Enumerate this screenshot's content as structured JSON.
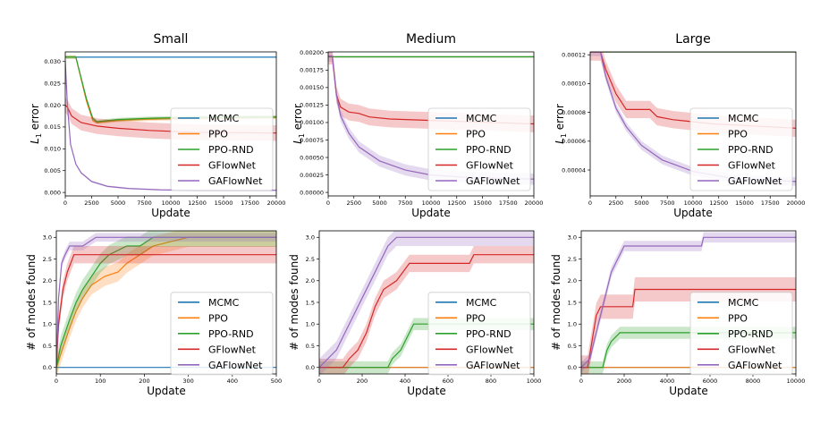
{
  "columns": [
    "Small",
    "Medium",
    "Large"
  ],
  "legend_labels": [
    "MCMC",
    "PPO",
    "PPO-RND",
    "GFlowNet",
    "GAFlowNet"
  ],
  "colors": {
    "MCMC": "#1f77b4",
    "PPO": "#ff7f0e",
    "PPO-RND": "#2ca02c",
    "GFlowNet": "#d62728",
    "GAFlowNet": "#9467bd"
  },
  "chart_data": [
    {
      "id": "small-error",
      "type": "line",
      "title": "Small",
      "xlabel": "Update",
      "ylabel": "L1 error",
      "xlim": [
        0,
        20000
      ],
      "ylim": [
        -0.0008,
        0.0322
      ],
      "xticks": [
        0,
        2500,
        5000,
        7500,
        10000,
        12500,
        15000,
        17500,
        20000
      ],
      "xtick_labels": [
        "0",
        "2500",
        "5000",
        "7500",
        "10000",
        "12500",
        "15000",
        "17500",
        "20000"
      ],
      "yticks": [
        0,
        0.005,
        0.01,
        0.015,
        0.02,
        0.025,
        0.03
      ],
      "ytick_labels": [
        "0.000",
        "0.005",
        "0.010",
        "0.015",
        "0.020",
        "0.025",
        "0.030"
      ],
      "legend": "right",
      "series": [
        {
          "name": "MCMC",
          "x": [
            0,
            20000
          ],
          "y": [
            0.031,
            0.031
          ],
          "band": 0
        },
        {
          "name": "PPO",
          "x": [
            0,
            1000,
            2000,
            2600,
            3000,
            5000,
            8000,
            12000,
            20000
          ],
          "y": [
            0.031,
            0.031,
            0.021,
            0.0165,
            0.016,
            0.0165,
            0.0168,
            0.017,
            0.0172
          ],
          "band": 0.0004
        },
        {
          "name": "PPO-RND",
          "x": [
            0,
            1000,
            2000,
            2600,
            3000,
            5000,
            8000,
            12000,
            20000
          ],
          "y": [
            0.031,
            0.031,
            0.0215,
            0.017,
            0.0162,
            0.0167,
            0.017,
            0.0172,
            0.0173
          ],
          "band": 0.0004
        },
        {
          "name": "GFlowNet",
          "x": [
            0,
            200,
            600,
            1500,
            3000,
            5000,
            8000,
            12000,
            20000
          ],
          "y": [
            0.02,
            0.0195,
            0.0175,
            0.016,
            0.0152,
            0.0147,
            0.0142,
            0.0138,
            0.0136
          ],
          "band": 0.0018
        },
        {
          "name": "GAFlowNet",
          "x": [
            0,
            200,
            500,
            1000,
            1500,
            2500,
            4000,
            6000,
            9000,
            12000,
            20000
          ],
          "y": [
            0.03,
            0.02,
            0.011,
            0.0065,
            0.0045,
            0.0025,
            0.0014,
            0.0009,
            0.0006,
            0.0005,
            0.0005
          ],
          "band": 0.0002
        }
      ]
    },
    {
      "id": "medium-error",
      "type": "line",
      "title": "Medium",
      "xlabel": "Update",
      "ylabel": "L1 error",
      "xlim": [
        0,
        20000
      ],
      "ylim": [
        -5e-05,
        0.00201
      ],
      "xticks": [
        0,
        2500,
        5000,
        7500,
        10000,
        12500,
        15000,
        17500,
        20000
      ],
      "xtick_labels": [
        "0",
        "2500",
        "5000",
        "7500",
        "10000",
        "12500",
        "15000",
        "17500",
        "20000"
      ],
      "yticks": [
        0,
        0.00025,
        0.0005,
        0.00075,
        0.001,
        0.00125,
        0.0015,
        0.00175,
        0.002
      ],
      "ytick_labels": [
        "0.00000",
        "0.00025",
        "0.00050",
        "0.00075",
        "0.00100",
        "0.00125",
        "0.00150",
        "0.00175",
        "0.00200"
      ],
      "legend": "right",
      "series": [
        {
          "name": "MCMC",
          "x": [
            0,
            20000
          ],
          "y": [
            0.00194,
            0.00194
          ],
          "band": 0
        },
        {
          "name": "PPO",
          "x": [
            0,
            20000
          ],
          "y": [
            0.00194,
            0.00194
          ],
          "band": 0
        },
        {
          "name": "PPO-RND",
          "x": [
            0,
            20000
          ],
          "y": [
            0.00194,
            0.00194
          ],
          "band": 0
        },
        {
          "name": "GFlowNet",
          "x": [
            0,
            400,
            800,
            1200,
            2000,
            3000,
            4000,
            6000,
            10000,
            14000,
            20000
          ],
          "y": [
            0.00195,
            0.00195,
            0.0014,
            0.00122,
            0.00115,
            0.00113,
            0.00108,
            0.00105,
            0.00103,
            0.00101,
            0.00098
          ],
          "band": 0.00012
        },
        {
          "name": "GAFlowNet",
          "x": [
            0,
            400,
            800,
            1200,
            2000,
            3000,
            5000,
            7500,
            10000,
            14000,
            20000
          ],
          "y": [
            0.00195,
            0.00195,
            0.0014,
            0.0011,
            0.00085,
            0.00065,
            0.00045,
            0.00032,
            0.00025,
            0.00021,
            0.00019
          ],
          "band": 8e-05
        }
      ]
    },
    {
      "id": "large-error",
      "type": "line",
      "title": "Large",
      "xlabel": "Update",
      "ylabel": "L1 error",
      "xlim": [
        0,
        20000
      ],
      "ylim": [
        2.2e-05,
        0.000122
      ],
      "xticks": [
        0,
        2500,
        5000,
        7500,
        10000,
        12500,
        15000,
        17500,
        20000
      ],
      "xtick_labels": [
        "0",
        "2500",
        "5000",
        "7500",
        "10000",
        "12500",
        "15000",
        "17500",
        "20000"
      ],
      "yticks": [
        4e-05,
        6e-05,
        8e-05,
        0.0001,
        0.00012
      ],
      "ytick_labels": [
        "0.00004",
        "0.00006",
        "0.00008",
        "0.00010",
        "0.00012"
      ],
      "legend": "right",
      "series": [
        {
          "name": "MCMC",
          "x": [
            0,
            20000
          ],
          "y": [
            0.000122,
            0.000122
          ],
          "band": 0
        },
        {
          "name": "PPO",
          "x": [
            0,
            20000
          ],
          "y": [
            0.000122,
            0.000122
          ],
          "band": 0
        },
        {
          "name": "PPO-RND",
          "x": [
            0,
            20000
          ],
          "y": [
            0.000122,
            0.000122
          ],
          "band": 0
        },
        {
          "name": "GFlowNet",
          "x": [
            0,
            1000,
            1500,
            2500,
            3500,
            5000,
            5800,
            6500,
            8000,
            12000,
            20000
          ],
          "y": [
            0.000122,
            0.000122,
            0.00011,
            9.3e-05,
            8.2e-05,
            8.2e-05,
            8.2e-05,
            7.7e-05,
            7.5e-05,
            7.2e-05,
            6.9e-05
          ],
          "band": 6e-06
        },
        {
          "name": "GAFlowNet",
          "x": [
            0,
            1000,
            1500,
            2500,
            3500,
            5000,
            7000,
            10000,
            14000,
            17000,
            20000
          ],
          "y": [
            0.000122,
            0.000122,
            0.000105,
            8.3e-05,
            7e-05,
            5.7e-05,
            4.7e-05,
            3.9e-05,
            3.4e-05,
            3.3e-05,
            3.2e-05
          ],
          "band": 3e-06
        }
      ]
    },
    {
      "id": "small-modes",
      "type": "line",
      "xlabel": "Update",
      "ylabel": "# of modes found",
      "xlim": [
        0,
        500
      ],
      "ylim": [
        -0.15,
        3.15
      ],
      "xticks": [
        0,
        100,
        200,
        300,
        400,
        500
      ],
      "xtick_labels": [
        "0",
        "100",
        "200",
        "300",
        "400",
        "500"
      ],
      "yticks": [
        0,
        0.5,
        1,
        1.5,
        2,
        2.5,
        3
      ],
      "ytick_labels": [
        "0.0",
        "0.5",
        "1.0",
        "1.5",
        "2.0",
        "2.5",
        "3.0"
      ],
      "legend": "right",
      "series": [
        {
          "name": "MCMC",
          "x": [
            0,
            500
          ],
          "y": [
            0,
            0
          ],
          "band": 0
        },
        {
          "name": "PPO",
          "x": [
            0,
            10,
            30,
            45,
            60,
            80,
            110,
            140,
            160,
            190,
            220,
            260,
            300,
            320,
            500
          ],
          "y": [
            0,
            0.3,
            0.9,
            1.3,
            1.6,
            1.9,
            2.1,
            2.2,
            2.4,
            2.6,
            2.8,
            2.9,
            3.0,
            3.0,
            3.0
          ],
          "band": 0.22
        },
        {
          "name": "PPO-RND",
          "x": [
            0,
            10,
            30,
            45,
            60,
            80,
            100,
            120,
            160,
            190,
            220,
            270,
            500
          ],
          "y": [
            0,
            0.5,
            1.1,
            1.5,
            1.8,
            2.1,
            2.4,
            2.6,
            2.8,
            2.8,
            3.0,
            3.0,
            3.0
          ],
          "band": 0.22
        },
        {
          "name": "GFlowNet",
          "x": [
            0,
            5,
            15,
            25,
            40,
            50,
            500
          ],
          "y": [
            0,
            1.0,
            1.8,
            2.2,
            2.6,
            2.6,
            2.6
          ],
          "band": 0.2
        },
        {
          "name": "GAFlowNet",
          "x": [
            0,
            5,
            12,
            20,
            30,
            60,
            90,
            500
          ],
          "y": [
            0,
            1.6,
            2.4,
            2.6,
            2.8,
            2.8,
            3.0,
            3.0
          ],
          "band": 0.1
        }
      ]
    },
    {
      "id": "medium-modes",
      "type": "line",
      "xlabel": "Update",
      "ylabel": "# of modes found",
      "xlim": [
        0,
        1000
      ],
      "ylim": [
        -0.15,
        3.15
      ],
      "xticks": [
        0,
        200,
        400,
        600,
        800,
        1000
      ],
      "xtick_labels": [
        "0",
        "200",
        "400",
        "600",
        "800",
        "1000"
      ],
      "yticks": [
        0,
        0.5,
        1,
        1.5,
        2,
        2.5,
        3
      ],
      "ytick_labels": [
        "0.0",
        "0.5",
        "1.0",
        "1.5",
        "2.0",
        "2.5",
        "3.0"
      ],
      "legend": "right",
      "series": [
        {
          "name": "MCMC",
          "x": [
            0,
            1000
          ],
          "y": [
            0,
            0
          ],
          "band": 0
        },
        {
          "name": "PPO",
          "x": [
            0,
            1000
          ],
          "y": [
            0,
            0
          ],
          "band": 0
        },
        {
          "name": "PPO-RND",
          "x": [
            0,
            320,
            340,
            380,
            420,
            440,
            1000
          ],
          "y": [
            0,
            0,
            0.2,
            0.4,
            0.8,
            1.0,
            1.0
          ],
          "band": 0.14
        },
        {
          "name": "GFlowNet",
          "x": [
            0,
            110,
            140,
            180,
            220,
            260,
            300,
            360,
            420,
            450,
            700,
            720,
            1000
          ],
          "y": [
            0,
            0,
            0.2,
            0.4,
            0.8,
            1.4,
            1.8,
            2.0,
            2.4,
            2.4,
            2.4,
            2.6,
            2.6
          ],
          "band": 0.2
        },
        {
          "name": "GAFlowNet",
          "x": [
            0,
            40,
            80,
            120,
            160,
            200,
            240,
            280,
            320,
            360,
            1000
          ],
          "y": [
            0,
            0.2,
            0.4,
            0.8,
            1.2,
            1.6,
            2.0,
            2.4,
            2.8,
            3.0,
            3.0
          ],
          "band": 0.2
        }
      ]
    },
    {
      "id": "large-modes",
      "type": "line",
      "xlabel": "Update",
      "ylabel": "# of modes found",
      "xlim": [
        0,
        10000
      ],
      "ylim": [
        -0.15,
        3.15
      ],
      "xticks": [
        0,
        2000,
        4000,
        6000,
        8000,
        10000
      ],
      "xtick_labels": [
        "0",
        "2000",
        "4000",
        "6000",
        "8000",
        "10000"
      ],
      "yticks": [
        0,
        0.5,
        1,
        1.5,
        2,
        2.5,
        3
      ],
      "ytick_labels": [
        "0.0",
        "0.5",
        "1.0",
        "1.5",
        "2.0",
        "2.5",
        "3.0"
      ],
      "legend": "right",
      "series": [
        {
          "name": "MCMC",
          "x": [
            0,
            10000
          ],
          "y": [
            0,
            0
          ],
          "band": 0
        },
        {
          "name": "PPO",
          "x": [
            0,
            10000
          ],
          "y": [
            0,
            0
          ],
          "band": 0
        },
        {
          "name": "PPO-RND",
          "x": [
            0,
            1000,
            1200,
            1400,
            1800,
            10000
          ],
          "y": [
            0,
            0,
            0.4,
            0.6,
            0.8,
            0.8
          ],
          "band": 0.14
        },
        {
          "name": "GFlowNet",
          "x": [
            0,
            300,
            500,
            700,
            900,
            2400,
            2500,
            10000
          ],
          "y": [
            0,
            0,
            0.6,
            1.2,
            1.4,
            1.4,
            1.8,
            1.8
          ],
          "band": 0.28
        },
        {
          "name": "GAFlowNet",
          "x": [
            0,
            400,
            600,
            800,
            1000,
            1200,
            1400,
            1600,
            1800,
            2000,
            5600,
            5700,
            10000
          ],
          "y": [
            0,
            0.2,
            0.6,
            1.0,
            1.4,
            1.8,
            2.2,
            2.4,
            2.6,
            2.8,
            2.8,
            3.0,
            3.0
          ],
          "band": 0.12
        }
      ]
    }
  ]
}
